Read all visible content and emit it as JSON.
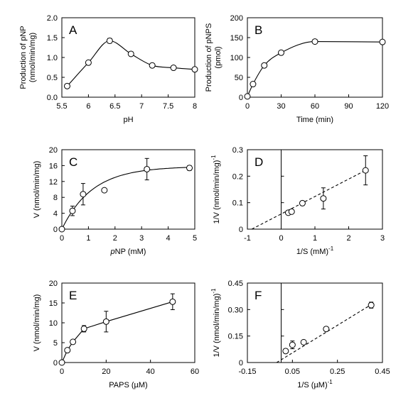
{
  "chart_data": [
    {
      "panel": "A",
      "type": "line",
      "xlabel": "pH",
      "ylabel": [
        "Production of pNP",
        "(nmol/min/mg)"
      ],
      "xlim": [
        5.5,
        8
      ],
      "ylim": [
        0,
        2.0
      ],
      "xticks": [
        5.5,
        6,
        6.5,
        7,
        7.5,
        8
      ],
      "xtick_labels": [
        "5.5",
        "6",
        "6.5",
        "7",
        "7.5",
        "8"
      ],
      "yticks": [
        0,
        0.5,
        1.0,
        1.5,
        2.0
      ],
      "ytick_labels": [
        "0.0",
        "0.5",
        "1.0",
        "1.5",
        "2.0"
      ],
      "series": [
        {
          "points": [
            {
              "x": 5.6,
              "y": 0.28,
              "err": 0
            },
            {
              "x": 6.0,
              "y": 0.87,
              "err": 0
            },
            {
              "x": 6.4,
              "y": 1.42,
              "err": 0.06
            },
            {
              "x": 6.8,
              "y": 1.09,
              "err": 0
            },
            {
              "x": 7.2,
              "y": 0.8,
              "err": 0
            },
            {
              "x": 7.6,
              "y": 0.74,
              "err": 0
            },
            {
              "x": 8.0,
              "y": 0.7,
              "err": 0
            }
          ],
          "curve": "smooth"
        }
      ]
    },
    {
      "panel": "B",
      "type": "line",
      "xlabel": "Time (min)",
      "ylabel": [
        "Production of pNPS",
        "(pmol)"
      ],
      "xlim": [
        0,
        120
      ],
      "ylim": [
        0,
        200
      ],
      "xticks": [
        0,
        30,
        60,
        90,
        120
      ],
      "xtick_labels": [
        "0",
        "30",
        "60",
        "90",
        "120"
      ],
      "yticks": [
        0,
        50,
        100,
        150,
        200
      ],
      "ytick_labels": [
        "0",
        "50",
        "100",
        "150",
        "200"
      ],
      "series": [
        {
          "points": [
            {
              "x": 0,
              "y": 2,
              "err": 0
            },
            {
              "x": 5,
              "y": 33,
              "err": 0
            },
            {
              "x": 15,
              "y": 80,
              "err": 0
            },
            {
              "x": 30,
              "y": 112,
              "err": 0
            },
            {
              "x": 60,
              "y": 140,
              "err": 0
            },
            {
              "x": 120,
              "y": 139,
              "err": 0
            }
          ],
          "curve": "smooth"
        }
      ]
    },
    {
      "panel": "C",
      "type": "scatter",
      "xlabel_italic": "p",
      "xlabel": "NP (mM)",
      "ylabel": [
        "V (nmol/min/mg)"
      ],
      "xlim": [
        0,
        5
      ],
      "ylim": [
        0,
        20
      ],
      "xticks": [
        0,
        1,
        2,
        3,
        4,
        5
      ],
      "xtick_labels": [
        "0",
        "1",
        "2",
        "3",
        "4",
        "5"
      ],
      "yticks": [
        0,
        4,
        8,
        12,
        16,
        20
      ],
      "ytick_labels": [
        "0",
        "4",
        "8",
        "12",
        "16",
        "20"
      ],
      "series": [
        {
          "points": [
            {
              "x": 0.0,
              "y": 0.0,
              "err": 0
            },
            {
              "x": 0.4,
              "y": 4.6,
              "err": 1.2
            },
            {
              "x": 0.8,
              "y": 8.8,
              "err": 2.7
            },
            {
              "x": 1.6,
              "y": 9.8,
              "err": 0
            },
            {
              "x": 3.2,
              "y": 15.1,
              "err": 2.7
            },
            {
              "x": 4.8,
              "y": 15.4,
              "err": 0.6
            }
          ],
          "fit": {
            "kind": "saturation",
            "vmax": 15.8,
            "k": 1.15
          }
        }
      ]
    },
    {
      "panel": "D",
      "type": "scatter",
      "xlabel": "1/S (mM)",
      "xlabel_sup": "-1",
      "ylabel": [
        "1/V (nmol/min/mg)",
        "-1"
      ],
      "xlim": [
        -1,
        3
      ],
      "ylim": [
        0,
        0.3
      ],
      "xticks": [
        -1,
        0,
        1,
        2,
        3
      ],
      "xtick_labels": [
        "-1",
        "0",
        "1",
        "2",
        "3"
      ],
      "yticks": [
        0,
        0.1,
        0.2,
        0.3
      ],
      "ytick_labels": [
        "0",
        "0.1",
        "0.2",
        "0.3"
      ],
      "series": [
        {
          "points": [
            {
              "x": 0.21,
              "y": 0.062,
              "err": 0.006
            },
            {
              "x": 0.31,
              "y": 0.066,
              "err": 0.006
            },
            {
              "x": 0.63,
              "y": 0.098,
              "err": 0
            },
            {
              "x": 1.25,
              "y": 0.116,
              "err": 0.04
            },
            {
              "x": 2.5,
              "y": 0.222,
              "err": 0.055
            }
          ],
          "fit": {
            "kind": "line",
            "x0": -0.87,
            "y0": 0,
            "x1": 2.5,
            "y1": 0.222
          }
        }
      ]
    },
    {
      "panel": "E",
      "type": "line",
      "xlabel": "PAPS (µM)",
      "ylabel": [
        "V (nmol/min/mg)"
      ],
      "xlim": [
        0,
        60
      ],
      "ylim": [
        0,
        20
      ],
      "xticks": [
        0,
        20,
        40,
        60
      ],
      "xtick_labels": [
        "0",
        "20",
        "40",
        "60"
      ],
      "yticks": [
        0,
        5,
        10,
        15,
        20
      ],
      "ytick_labels": [
        "0",
        "5",
        "10",
        "15",
        "20"
      ],
      "series": [
        {
          "points": [
            {
              "x": 0,
              "y": 0,
              "err": 0
            },
            {
              "x": 2.5,
              "y": 3.1,
              "err": 0
            },
            {
              "x": 5,
              "y": 5.2,
              "err": 0
            },
            {
              "x": 10,
              "y": 8.5,
              "err": 0.8
            },
            {
              "x": 20,
              "y": 10.3,
              "err": 2.6
            },
            {
              "x": 50,
              "y": 15.3,
              "err": 2.0
            }
          ],
          "curve": "straight"
        }
      ]
    },
    {
      "panel": "F",
      "type": "scatter",
      "xlabel": "1/S (µM)",
      "xlabel_sup": "-1",
      "ylabel": [
        "1/V (nmol/min/mg)",
        "-1"
      ],
      "xlim": [
        -0.15,
        0.45
      ],
      "ylim": [
        0,
        0.45
      ],
      "xticks": [
        -0.15,
        0.05,
        0.25,
        0.45
      ],
      "xtick_labels": [
        "-0.15",
        "0.05",
        "0.25",
        "0.45"
      ],
      "yticks": [
        0,
        0.15,
        0.3,
        0.45
      ],
      "ytick_labels": [
        "0",
        "0.15",
        "0.30",
        "0.45"
      ],
      "series": [
        {
          "points": [
            {
              "x": 0.02,
              "y": 0.065,
              "err": 0
            },
            {
              "x": 0.05,
              "y": 0.1,
              "err": 0.022
            },
            {
              "x": 0.1,
              "y": 0.115,
              "err": 0.007
            },
            {
              "x": 0.2,
              "y": 0.19,
              "err": 0.009
            },
            {
              "x": 0.4,
              "y": 0.325,
              "err": 0.017
            }
          ],
          "fit": {
            "kind": "line",
            "x0": -0.02,
            "y0": 0,
            "x1": 0.4,
            "y1": 0.328
          }
        }
      ]
    }
  ]
}
